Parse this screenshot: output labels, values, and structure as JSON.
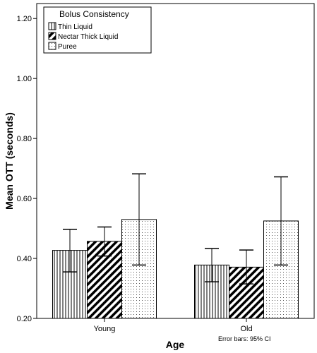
{
  "chart_data": {
    "type": "bar",
    "categories": [
      "Young",
      "Old"
    ],
    "legend_title": "Bolus Consistency",
    "legend_position": "top-left",
    "series": [
      {
        "name": "Thin Liquid",
        "pattern": "vertical-lines",
        "values": [
          0.427,
          0.378
        ],
        "ci_low": [
          0.355,
          0.322
        ],
        "ci_high": [
          0.497,
          0.433
        ]
      },
      {
        "name": "Nectar Thick Liquid",
        "pattern": "diagonal-hatch",
        "values": [
          0.457,
          0.371
        ],
        "ci_low": [
          0.408,
          0.315
        ],
        "ci_high": [
          0.505,
          0.428
        ]
      },
      {
        "name": "Puree",
        "pattern": "dots",
        "values": [
          0.53,
          0.525
        ],
        "ci_low": [
          0.378,
          0.378
        ],
        "ci_high": [
          0.682,
          0.672
        ]
      }
    ],
    "xlabel": "Age",
    "ylabel": "Mean OTT (seconds)",
    "ylim": [
      0.2,
      1.25
    ],
    "yticks": [
      "0.20",
      "0.40",
      "0.60",
      "0.80",
      "1.00",
      "1.20"
    ],
    "grid": false,
    "note": "Error bars: 95% CI"
  }
}
